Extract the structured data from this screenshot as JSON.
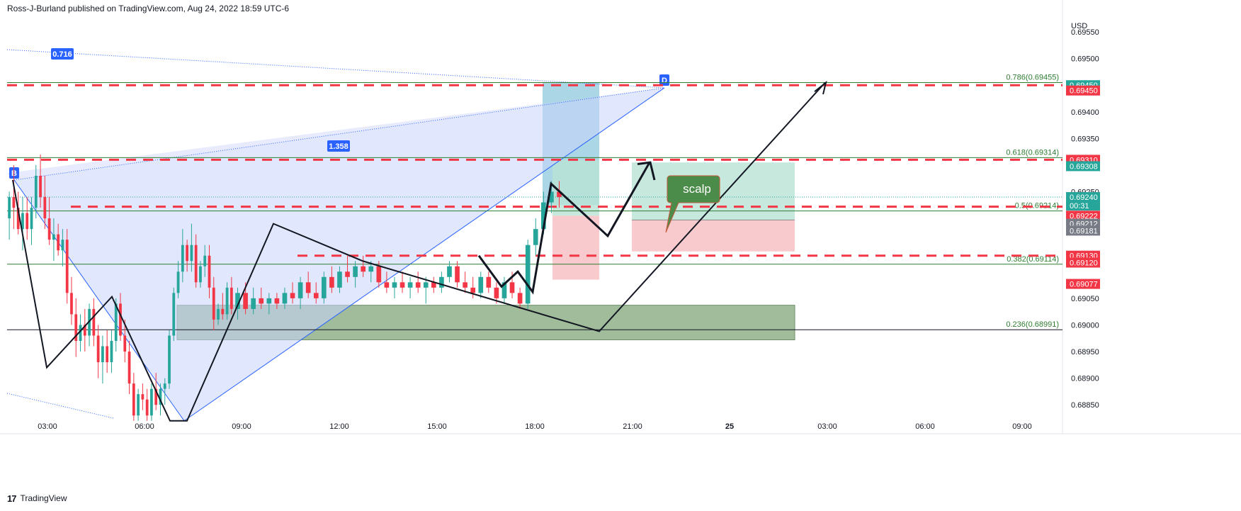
{
  "header": {
    "author": "Ross-J-Burland",
    "published_text": "published on TradingView.com, Aug 24, 2022 18:59 UTC-6"
  },
  "footer": {
    "logo": "17",
    "brand": "TradingView"
  },
  "colors": {
    "up": "#26a69a",
    "down": "#f23645",
    "fib": "#2e7d32",
    "pattern_fill": "#c9d3fb",
    "pattern_line": "#2962ff",
    "zone": "#8fb08a",
    "target_zone": "#b9e3d4",
    "stop_zone": "#f7c4c8",
    "scalp_bubble": "#4c8c4a"
  },
  "chart_data": {
    "type": "candlestick",
    "symbol_currency": "USD",
    "yaxis_ticks": [
      "0.69550",
      "0.69500",
      "0.69400",
      "0.69350",
      "0.69250",
      "0.69050",
      "0.69000",
      "0.68950",
      "0.68900",
      "0.68850"
    ],
    "xaxis_ticks": [
      "03:00",
      "06:00",
      "09:00",
      "12:00",
      "15:00",
      "18:00",
      "21:00",
      "25",
      "03:00",
      "06:00",
      "09:00"
    ],
    "ylim": [
      0.6882,
      0.6964
    ],
    "candles_hours_from_0200": [
      0.0,
      7.0
    ],
    "candles": [
      [
        0.692,
        0.6925,
        0.6916,
        0.6924
      ],
      [
        0.6924,
        0.693,
        0.6918,
        0.6922
      ],
      [
        0.6922,
        0.6925,
        0.6917,
        0.6918
      ],
      [
        0.6918,
        0.6924,
        0.6914,
        0.6921
      ],
      [
        0.6921,
        0.6924,
        0.6916,
        0.6918
      ],
      [
        0.6918,
        0.6924,
        0.6915,
        0.6922
      ],
      [
        0.6922,
        0.693,
        0.692,
        0.6928
      ],
      [
        0.6928,
        0.6932,
        0.6922,
        0.6924
      ],
      [
        0.6924,
        0.6928,
        0.6918,
        0.692
      ],
      [
        0.692,
        0.6924,
        0.6915,
        0.6916
      ],
      [
        0.6916,
        0.692,
        0.6912,
        0.6917
      ],
      [
        0.6917,
        0.6919,
        0.6913,
        0.6914
      ],
      [
        0.6914,
        0.6918,
        0.6911,
        0.6916
      ],
      [
        0.6916,
        0.6918,
        0.6904,
        0.6906
      ],
      [
        0.6906,
        0.6909,
        0.69,
        0.6902
      ],
      [
        0.6902,
        0.6905,
        0.6894,
        0.6897
      ],
      [
        0.6897,
        0.6902,
        0.6895,
        0.69
      ],
      [
        0.69,
        0.6903,
        0.6895,
        0.6898
      ],
      [
        0.6898,
        0.6904,
        0.6896,
        0.6903
      ],
      [
        0.6903,
        0.6905,
        0.6896,
        0.6898
      ],
      [
        0.6898,
        0.69,
        0.689,
        0.6893
      ],
      [
        0.6893,
        0.6898,
        0.6889,
        0.6896
      ],
      [
        0.6896,
        0.6899,
        0.6891,
        0.6893
      ],
      [
        0.6893,
        0.6899,
        0.6891,
        0.6897
      ],
      [
        0.6897,
        0.6905,
        0.6895,
        0.6904
      ],
      [
        0.6904,
        0.6906,
        0.6897,
        0.6898
      ],
      [
        0.6898,
        0.6901,
        0.6893,
        0.6895
      ],
      [
        0.6895,
        0.6897,
        0.6887,
        0.6889
      ],
      [
        0.6889,
        0.6891,
        0.6882,
        0.6883
      ],
      [
        0.6883,
        0.6888,
        0.6882,
        0.6887
      ],
      [
        0.6887,
        0.6889,
        0.6884,
        0.6886
      ],
      [
        0.6886,
        0.6888,
        0.6882,
        0.6883
      ],
      [
        0.6883,
        0.6889,
        0.6882,
        0.6888
      ],
      [
        0.6888,
        0.6891,
        0.6884,
        0.6885
      ],
      [
        0.6885,
        0.6889,
        0.6883,
        0.6888
      ],
      [
        0.6888,
        0.689,
        0.6885,
        0.6889
      ],
      [
        0.6889,
        0.6899,
        0.6888,
        0.6898
      ],
      [
        0.6898,
        0.6907,
        0.6897,
        0.6906
      ],
      [
        0.6906,
        0.6912,
        0.6905,
        0.691
      ],
      [
        0.691,
        0.6918,
        0.6908,
        0.6915
      ],
      [
        0.6915,
        0.6916,
        0.691,
        0.6912
      ],
      [
        0.6912,
        0.6919,
        0.691,
        0.6915
      ],
      [
        0.6915,
        0.6917,
        0.6907,
        0.6908
      ],
      [
        0.6908,
        0.6912,
        0.6907,
        0.6911
      ],
      [
        0.6911,
        0.6915,
        0.6909,
        0.6913
      ],
      [
        0.6913,
        0.6915,
        0.6905,
        0.6907
      ],
      [
        0.6907,
        0.6909,
        0.6899,
        0.6901
      ],
      [
        0.6901,
        0.6904,
        0.69,
        0.6903
      ],
      [
        0.6903,
        0.6906,
        0.6901,
        0.6902
      ],
      [
        0.6902,
        0.6908,
        0.6901,
        0.6907
      ],
      [
        0.6907,
        0.6909,
        0.6902,
        0.6903
      ]
    ],
    "candles2_hours_from_0900": [
      0.0,
      9.85
    ],
    "candles2": [
      [
        0.6903,
        0.6907,
        0.6901,
        0.6906
      ],
      [
        0.6906,
        0.6908,
        0.6902,
        0.6903
      ],
      [
        0.6903,
        0.6907,
        0.6902,
        0.6905
      ],
      [
        0.6905,
        0.6907,
        0.6903,
        0.6904
      ],
      [
        0.6904,
        0.6906,
        0.6902,
        0.6905
      ],
      [
        0.6905,
        0.6906,
        0.6903,
        0.6904
      ],
      [
        0.6904,
        0.6907,
        0.6903,
        0.6906
      ],
      [
        0.6906,
        0.6908,
        0.6904,
        0.6905
      ],
      [
        0.6905,
        0.6909,
        0.6903,
        0.6908
      ],
      [
        0.6908,
        0.691,
        0.6905,
        0.6906
      ],
      [
        0.6906,
        0.6908,
        0.6904,
        0.6905
      ],
      [
        0.6905,
        0.691,
        0.6904,
        0.6909
      ],
      [
        0.6909,
        0.6911,
        0.6906,
        0.6907
      ],
      [
        0.6907,
        0.6911,
        0.6906,
        0.691
      ],
      [
        0.691,
        0.6913,
        0.6908,
        0.6909
      ],
      [
        0.6909,
        0.6912,
        0.6907,
        0.6911
      ],
      [
        0.6911,
        0.6913,
        0.6909,
        0.691
      ],
      [
        0.691,
        0.6912,
        0.6908,
        0.6911
      ],
      [
        0.6911,
        0.6912,
        0.6907,
        0.6908
      ],
      [
        0.6908,
        0.691,
        0.6906,
        0.6907
      ],
      [
        0.6907,
        0.6909,
        0.6905,
        0.6908
      ],
      [
        0.6908,
        0.691,
        0.6906,
        0.6907
      ],
      [
        0.6907,
        0.6909,
        0.6905,
        0.6908
      ],
      [
        0.6908,
        0.691,
        0.6906,
        0.6907
      ],
      [
        0.6907,
        0.6909,
        0.6904,
        0.6908
      ],
      [
        0.6908,
        0.6909,
        0.6906,
        0.6907
      ],
      [
        0.6907,
        0.691,
        0.6906,
        0.6909
      ],
      [
        0.6909,
        0.6912,
        0.6908,
        0.6911
      ],
      [
        0.6911,
        0.6912,
        0.6907,
        0.6908
      ],
      [
        0.6908,
        0.691,
        0.6906,
        0.6907
      ],
      [
        0.6907,
        0.6909,
        0.6905,
        0.6906
      ],
      [
        0.6906,
        0.691,
        0.6905,
        0.6909
      ],
      [
        0.6909,
        0.691,
        0.6906,
        0.6907
      ],
      [
        0.6907,
        0.6908,
        0.6904,
        0.6905
      ],
      [
        0.6905,
        0.6909,
        0.6904,
        0.6908
      ],
      [
        0.6908,
        0.691,
        0.6905,
        0.6906
      ],
      [
        0.6906,
        0.6907,
        0.6903,
        0.6904
      ],
      [
        0.6904,
        0.6916,
        0.6903,
        0.6915
      ],
      [
        0.6915,
        0.692,
        0.6913,
        0.6918
      ],
      [
        0.6918,
        0.6925,
        0.6917,
        0.6923
      ],
      [
        0.6923,
        0.6927,
        0.6921,
        0.6925
      ],
      [
        0.6925,
        0.6927,
        0.6922,
        0.6924
      ]
    ],
    "horizontal_levels": [
      {
        "price": 0.6945,
        "style": "dashed",
        "color": "#f23645"
      },
      {
        "price": 0.6931,
        "style": "dashed",
        "color": "#f23645"
      },
      {
        "price": 0.69222,
        "style": "dashed",
        "color": "#f23645"
      },
      {
        "price": 0.6913,
        "style": "dashed",
        "color": "#f23645"
      }
    ],
    "fib_levels": [
      {
        "label": "0.786(0.69455)",
        "price": 0.69455
      },
      {
        "label": "0.618(0.69314)",
        "price": 0.69314
      },
      {
        "label": "0.5(0.69214)",
        "price": 0.69214
      },
      {
        "label": "0.382(0.69114)",
        "price": 0.69114
      },
      {
        "label": "0.236(0.68991)",
        "price": 0.68991
      }
    ],
    "price_tags": [
      {
        "text": "0.69450",
        "price": 0.6945,
        "color": "#26a69a"
      },
      {
        "text": "0.69450",
        "price": 0.6944,
        "color": "#f23645"
      },
      {
        "text": "0.69310",
        "price": 0.6931,
        "color": "#f23645"
      },
      {
        "text": "0.69308",
        "price": 0.69298,
        "color": "#26a69a"
      },
      {
        "text": "0.69240",
        "price": 0.6924,
        "color": "#26a69a",
        "sub": "00:31"
      },
      {
        "text": "0.69222",
        "price": 0.69205,
        "color": "#f23645"
      },
      {
        "text": "0.69212",
        "price": 0.6919,
        "color": "#787b86"
      },
      {
        "text": "0.69181",
        "price": 0.69177,
        "color": "#787b86"
      },
      {
        "text": "0.69130",
        "price": 0.6913,
        "color": "#f23645"
      },
      {
        "text": "0.69120",
        "price": 0.69117,
        "color": "#f23645"
      },
      {
        "text": "0.69077",
        "price": 0.69077,
        "color": "#f23645"
      }
    ],
    "pattern_labels": [
      {
        "text": "B"
      },
      {
        "text": "D"
      },
      {
        "text": "0.716"
      },
      {
        "text": "1.358"
      }
    ],
    "annotation": "scalp"
  }
}
